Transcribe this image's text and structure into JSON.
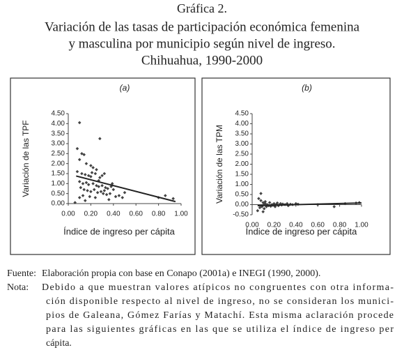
{
  "figure_title": [
    "Gráfica 2.",
    "Variación de las tasas de participación económica femenina",
    "y masculina por municipio según nivel de ingreso.",
    "Chihuahua, 1990-2000"
  ],
  "source": {
    "label": "Fuente:",
    "text": "Elaboración propia con base en Conapo (2001a) e INEGI (1990, 2000)."
  },
  "note": {
    "label": "Nota:",
    "lines": [
      "Debido a que muestran valores atípicos no congruentes con otra informa-",
      "ción disponible respecto al nivel de ingreso, no se consideran los munici-",
      "pios de Galeana, Gómez Farías y Matachí. Esta misma aclaración procede",
      "para las siguientes gráficas en las que se utiliza el índice de ingreso per",
      "cápita."
    ]
  },
  "chart_data": [
    {
      "type": "scatter",
      "panel_label": "(a)",
      "y_label": "Variación de las TPF",
      "x_label": "Índice de ingreso per cápita",
      "color": "#444444",
      "x": [
        0.1,
        0.28,
        0.08,
        0.12,
        0.1,
        0.14,
        0.16,
        0.2,
        0.22,
        0.25,
        0.08,
        0.12,
        0.15,
        0.18,
        0.2,
        0.24,
        0.28,
        0.3,
        0.32,
        0.1,
        0.13,
        0.16,
        0.18,
        0.22,
        0.25,
        0.27,
        0.3,
        0.33,
        0.35,
        0.38,
        0.4,
        0.11,
        0.14,
        0.17,
        0.2,
        0.23,
        0.26,
        0.29,
        0.31,
        0.34,
        0.37,
        0.42,
        0.45,
        0.48,
        0.1,
        0.13,
        0.19,
        0.24,
        0.36,
        0.5,
        0.06,
        0.15,
        0.27,
        0.21,
        0.8,
        0.86,
        0.93,
        0.39,
        0.32
      ],
      "y": [
        4.05,
        3.25,
        2.75,
        2.5,
        2.2,
        2.45,
        2.0,
        1.9,
        1.8,
        1.7,
        1.6,
        1.5,
        1.45,
        1.4,
        1.35,
        1.5,
        1.3,
        1.4,
        1.5,
        1.1,
        1.0,
        1.05,
        0.95,
        1.0,
        0.9,
        0.85,
        0.9,
        0.8,
        0.75,
        0.85,
        0.7,
        0.8,
        0.7,
        0.65,
        0.6,
        0.7,
        0.55,
        0.6,
        0.5,
        0.45,
        0.5,
        0.35,
        0.4,
        0.3,
        0.3,
        0.4,
        0.35,
        0.3,
        0.2,
        0.55,
        0.05,
        0.15,
        1.15,
        1.55,
        0.3,
        0.4,
        0.25,
        1.0,
        0.65
      ],
      "trendline": {
        "x": [
          0.07,
          0.95
        ],
        "y": [
          1.38,
          0.1
        ]
      },
      "xlim": [
        0,
        1
      ],
      "ylim": [
        0,
        4.5
      ],
      "xticks": [
        {
          "value": 0,
          "label": "0.00"
        },
        {
          "value": 0.2,
          "label": "0.20"
        },
        {
          "value": 0.4,
          "label": "0.40"
        },
        {
          "value": 0.6,
          "label": "0.60"
        },
        {
          "value": 0.8,
          "label": "0.80"
        },
        {
          "value": 1,
          "label": "1.00"
        }
      ],
      "yticks": [
        {
          "value": 0,
          "label": "0.00"
        },
        {
          "value": 0.5,
          "label": "0.50"
        },
        {
          "value": 1,
          "label": "1.00"
        },
        {
          "value": 1.5,
          "label": "1.50"
        },
        {
          "value": 2,
          "label": "2.00"
        },
        {
          "value": 2.5,
          "label": "2.50"
        },
        {
          "value": 3,
          "label": "3.00"
        },
        {
          "value": 3.5,
          "label": "3.50"
        },
        {
          "value": 4,
          "label": "4.00"
        },
        {
          "value": 4.5,
          "label": "4.50"
        }
      ]
    },
    {
      "type": "scatter",
      "panel_label": "(b)",
      "y_label": "Variación de las TPM",
      "x_label": "Índice de ingreso per cápita",
      "color": "#444444",
      "x": [
        0.08,
        0.06,
        0.05,
        0.07,
        0.09,
        0.1,
        0.11,
        0.12,
        0.13,
        0.14,
        0.15,
        0.16,
        0.17,
        0.18,
        0.19,
        0.2,
        0.21,
        0.22,
        0.23,
        0.24,
        0.25,
        0.26,
        0.27,
        0.28,
        0.3,
        0.32,
        0.33,
        0.35,
        0.37,
        0.4,
        0.42,
        0.08,
        0.1,
        0.12,
        0.6,
        0.75,
        0.85,
        0.95,
        0.98,
        0.09,
        0.11
      ],
      "y": [
        0.55,
        0.3,
        -0.3,
        -0.15,
        -0.05,
        0.1,
        -0.2,
        0.05,
        -0.1,
        0.0,
        -0.05,
        0.1,
        -0.08,
        0.0,
        -0.03,
        0.05,
        -0.1,
        0.0,
        0.08,
        -0.05,
        0.0,
        0.05,
        -0.02,
        0.03,
        0.0,
        0.05,
        -0.05,
        0.02,
        0.0,
        0.05,
        0.02,
        0.2,
        -0.35,
        0.15,
        0.0,
        -0.1,
        0.05,
        0.08,
        0.1,
        -0.1,
        0.05
      ],
      "trendline": {
        "x": [
          0.05,
          1.0
        ],
        "y": [
          -0.05,
          0.08
        ]
      },
      "xlim": [
        0,
        1
      ],
      "ylim": [
        -0.5,
        4.5
      ],
      "xticks": [
        {
          "value": 0,
          "label": "0.00"
        },
        {
          "value": 0.2,
          "label": "0.20"
        },
        {
          "value": 0.4,
          "label": "0.40"
        },
        {
          "value": 0.6,
          "label": "0.60"
        },
        {
          "value": 0.8,
          "label": "0.80"
        },
        {
          "value": 1,
          "label": "1.00"
        }
      ],
      "yticks": [
        {
          "value": -0.5,
          "label": "-0.50"
        },
        {
          "value": 0,
          "label": "0.00"
        },
        {
          "value": 0.5,
          "label": "0.50"
        },
        {
          "value": 1,
          "label": "1.00"
        },
        {
          "value": 1.5,
          "label": "1.50"
        },
        {
          "value": 2,
          "label": "2.00"
        },
        {
          "value": 2.5,
          "label": "2.50"
        },
        {
          "value": 3,
          "label": "3.00"
        },
        {
          "value": 3.5,
          "label": "3.50"
        },
        {
          "value": 4,
          "label": "4.00"
        },
        {
          "value": 4.5,
          "label": "4.50"
        }
      ]
    }
  ]
}
